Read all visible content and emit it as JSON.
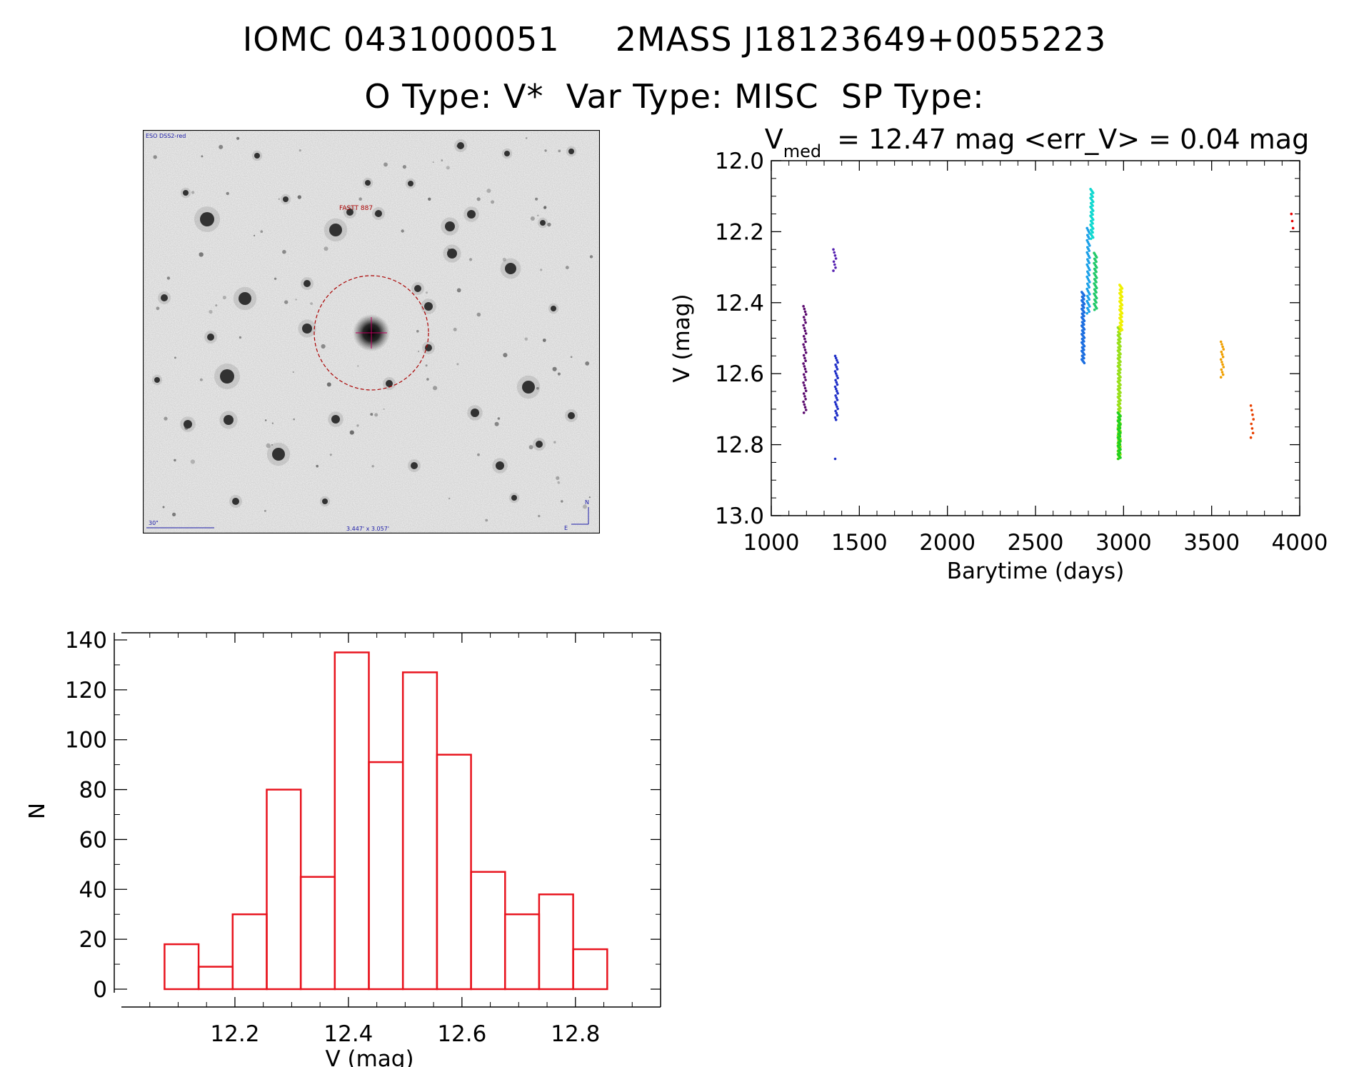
{
  "header": {
    "line1_left": "IOMC 0431000051",
    "line1_right": "2MASS J18123649+0055223",
    "line2": "O Type: V*  Var Type: MISC  SP Type:"
  },
  "finder_chart": {
    "survey_label": "ESO DSS2-red",
    "object_label": "FASTT 887",
    "scale_label": "30\"",
    "size_label": "3.447' x 3.057'",
    "north_label": "N",
    "east_label": "E",
    "colors": {
      "frame": "#000000",
      "circle": "#aa0000",
      "labels_blue": "#1a1aa8",
      "labels_red": "#aa0000"
    }
  },
  "chart_data": [
    {
      "type": "scatter",
      "title_main": "V",
      "title_sub": "med",
      "title_rest": "= 12.47 mag <err_V> = 0.04 mag",
      "xlabel": "Barytime (days)",
      "ylabel": "V (mag)",
      "xlim": [
        1000,
        4000
      ],
      "ylim": [
        13.0,
        12.0
      ],
      "y_inverted": true,
      "xticks": [
        1000,
        1500,
        2000,
        2500,
        3000,
        3500,
        4000
      ],
      "yticks": [
        12.0,
        12.2,
        12.4,
        12.6,
        12.8,
        13.0
      ],
      "ytick_labels": [
        "12.0",
        "12.2",
        "12.4",
        "12.6",
        "12.8",
        "13.0"
      ],
      "series": [
        {
          "color": "#5a0a6e",
          "x": 1190,
          "ymin": 12.41,
          "ymax": 12.71,
          "n": 40
        },
        {
          "color": "#5520b0",
          "x": 1360,
          "ymin": 12.25,
          "ymax": 12.31,
          "n": 8
        },
        {
          "color": "#2030c8",
          "x": 1370,
          "ymin": 12.55,
          "ymax": 12.73,
          "n": 30
        },
        {
          "color": "#2030c8",
          "x": 1370,
          "ymin": 12.84,
          "ymax": 12.84,
          "n": 1
        },
        {
          "color": "#1c6ee0",
          "x": 2770,
          "ymin": 12.37,
          "ymax": 12.57,
          "n": 60
        },
        {
          "color": "#1aa0e8",
          "x": 2800,
          "ymin": 12.19,
          "ymax": 12.43,
          "n": 50
        },
        {
          "color": "#10d8d0",
          "x": 2820,
          "ymin": 12.08,
          "ymax": 12.22,
          "n": 40
        },
        {
          "color": "#22c96a",
          "x": 2840,
          "ymin": 12.26,
          "ymax": 12.42,
          "n": 40
        },
        {
          "color": "#98e01a",
          "x": 2975,
          "ymin": 12.47,
          "ymax": 12.84,
          "n": 120
        },
        {
          "color": "#20d020",
          "x": 2975,
          "ymin": 12.71,
          "ymax": 12.84,
          "n": 40
        },
        {
          "color": "#f0f000",
          "x": 2985,
          "ymin": 12.35,
          "ymax": 12.48,
          "n": 40
        },
        {
          "color": "#f0a000",
          "x": 3560,
          "ymin": 12.51,
          "ymax": 12.61,
          "n": 15
        },
        {
          "color": "#e84000",
          "x": 3730,
          "ymin": 12.69,
          "ymax": 12.78,
          "n": 8
        },
        {
          "color": "#e80000",
          "x": 3960,
          "ymin": 12.15,
          "ymax": 12.19,
          "n": 3
        }
      ]
    },
    {
      "type": "bar",
      "xlabel": "V (mag)",
      "ylabel": "N",
      "xlim": [
        12.0,
        12.95
      ],
      "ylim": [
        0,
        140
      ],
      "xticks": [
        12.2,
        12.4,
        12.6,
        12.8
      ],
      "xtick_labels": [
        "12.2",
        "12.4",
        "12.6",
        "12.8"
      ],
      "yticks": [
        0,
        20,
        40,
        60,
        80,
        100,
        120,
        140
      ],
      "ytick_labels": [
        "0",
        "20",
        "40",
        "60",
        "80",
        "100",
        "120",
        "140"
      ],
      "bin_edges": [
        12.076,
        12.136,
        12.196,
        12.256,
        12.316,
        12.376,
        12.436,
        12.496,
        12.556,
        12.616,
        12.676,
        12.736,
        12.796,
        12.856
      ],
      "values": [
        18,
        9,
        30,
        80,
        45,
        135,
        91,
        127,
        94,
        47,
        30,
        38,
        16
      ],
      "bar_color": "#e8141e"
    }
  ]
}
